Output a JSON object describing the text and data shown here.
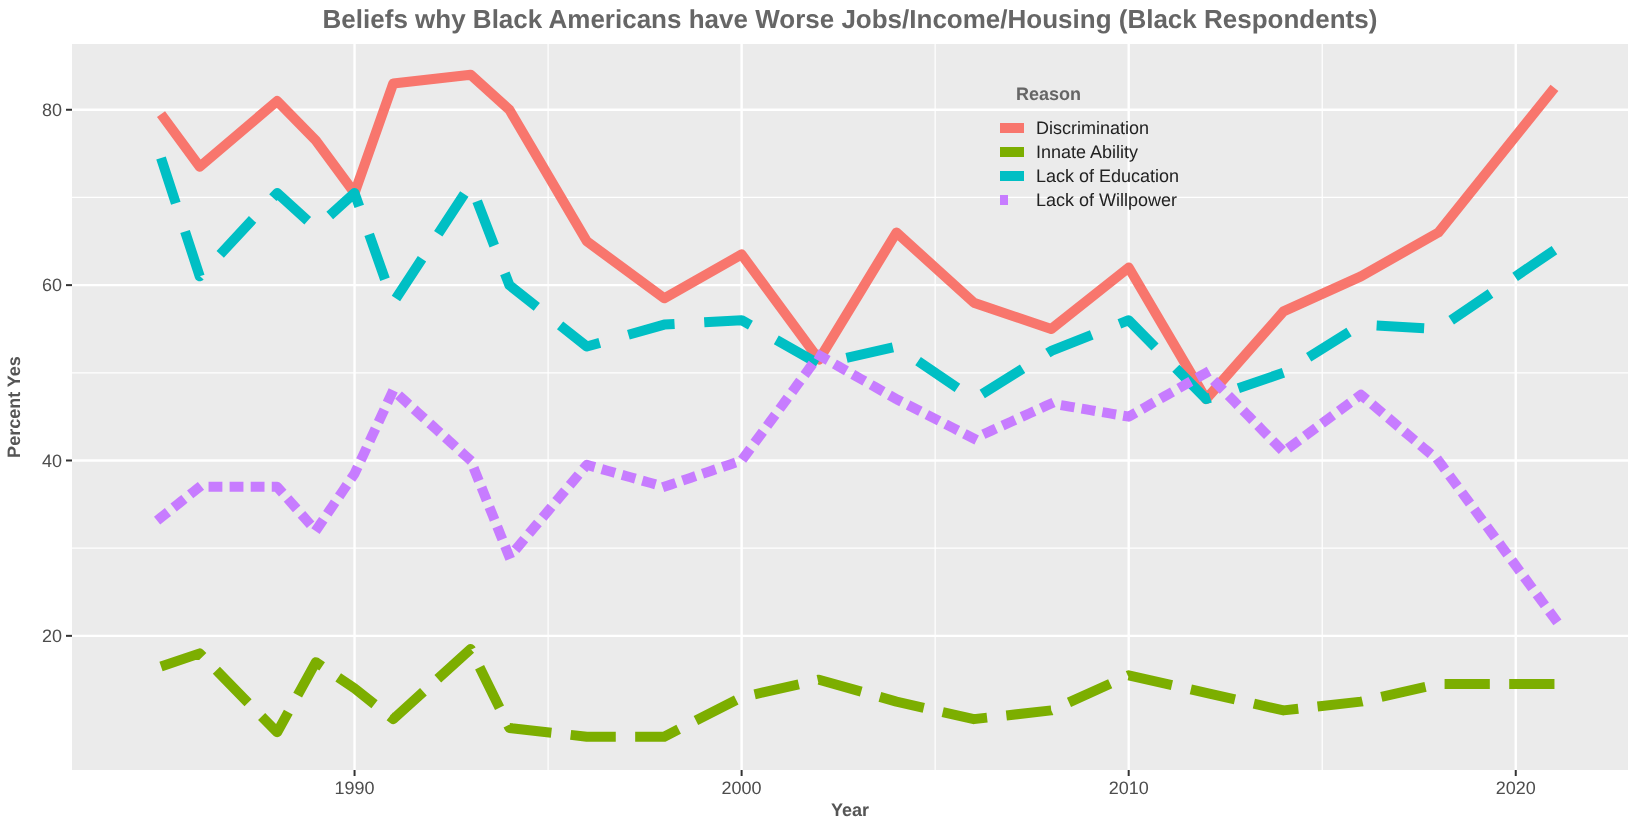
{
  "chart_data": {
    "type": "line",
    "title": "Beliefs why Black Americans have Worse Jobs/Income/Housing (Black Respondents)",
    "xlabel": "Year",
    "ylabel": "Percent Yes",
    "legend_title": "Reason",
    "legend": "top",
    "grid": true,
    "x": [
      1985,
      1986,
      1988,
      1989,
      1990,
      1991,
      1993,
      1994,
      1996,
      1998,
      2000,
      2002,
      2004,
      2006,
      2008,
      2010,
      2012,
      2014,
      2016,
      2018,
      2021
    ],
    "xlim": [
      1982.7,
      2022.9
    ],
    "xticks": [
      1990,
      2000,
      2010,
      2020
    ],
    "ylim": [
      4.7,
      87.5
    ],
    "yticks": [
      20,
      40,
      60,
      80
    ],
    "series": [
      {
        "name": "Discrimination",
        "color": "#f8766d",
        "line_style": "solid",
        "values": [
          79.5,
          73.5,
          81,
          76.5,
          70.5,
          83,
          84,
          80,
          65,
          58.5,
          63.5,
          51.5,
          66,
          58,
          55,
          62,
          47,
          57,
          61,
          66,
          82.5
        ]
      },
      {
        "name": "Innate Ability",
        "color": "#7cae00",
        "line_style": "longdash",
        "values": [
          16.5,
          18,
          9,
          17,
          14,
          10.5,
          18.5,
          9.5,
          8.5,
          8.5,
          13,
          15,
          12.5,
          10.5,
          11.5,
          15.5,
          13.5,
          11.5,
          12.5,
          14.5,
          14.5
        ]
      },
      {
        "name": "Lack of Education",
        "color": "#00bfc4",
        "line_style": "dashed",
        "values": [
          74.5,
          61,
          70.5,
          66.5,
          70.5,
          58,
          71.5,
          60,
          53,
          55.5,
          56,
          51,
          53,
          47,
          52.5,
          56,
          47,
          50,
          55.5,
          55,
          64
        ]
      },
      {
        "name": "Lack of Willpower",
        "color": "#c77cff",
        "line_style": "dotted",
        "values": [
          33.5,
          37,
          37,
          32,
          38.5,
          48,
          40,
          29,
          39.5,
          37,
          40,
          52,
          47,
          42.5,
          46.5,
          45,
          50,
          41,
          47.5,
          40,
          22
        ]
      }
    ]
  }
}
